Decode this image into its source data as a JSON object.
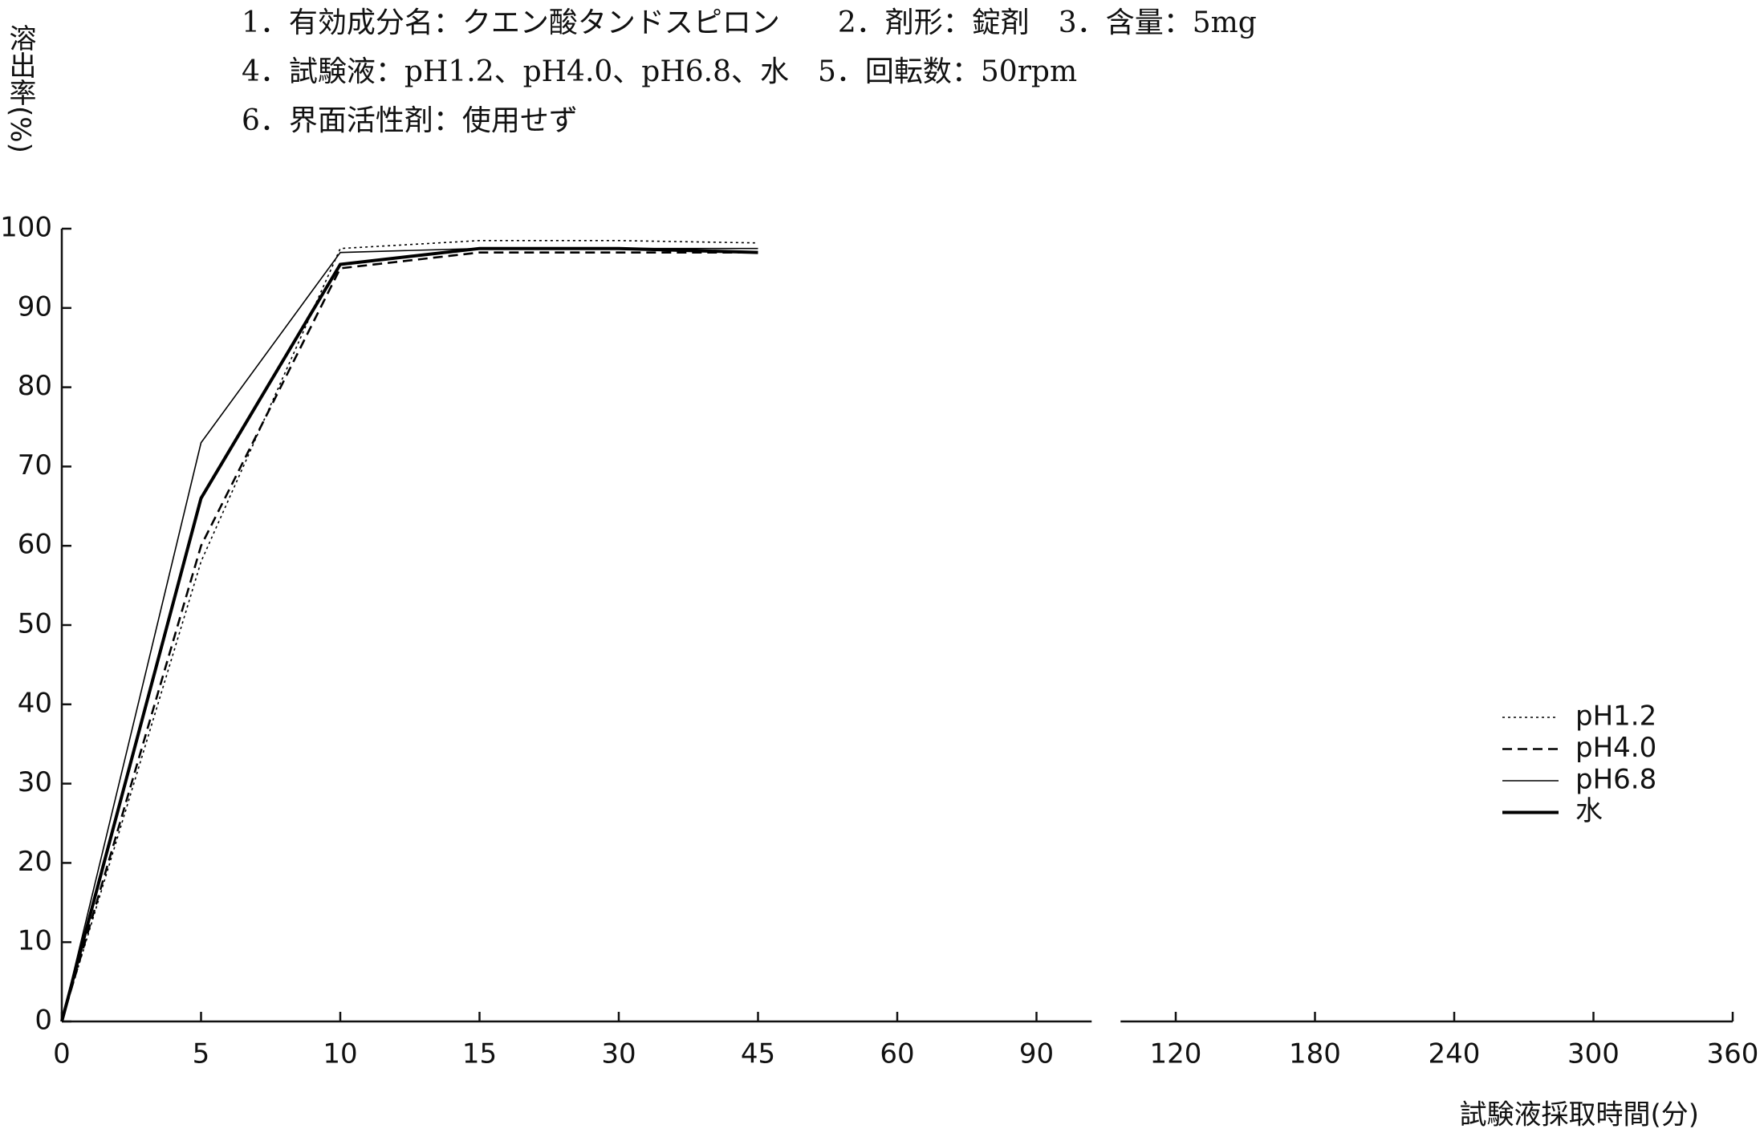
{
  "chart_data": {
    "type": "line",
    "header_lines": [
      "1．有効成分名：クエン酸タンドスピロン　　2．剤形：錠剤　3．含量：5mg",
      "4．試験液：pH1.2、pH4.0、pH6.8、水　5．回転数：50rpm",
      "6．界面活性剤：使用せず"
    ],
    "y_label": "溶出率(%)",
    "x_label": "試験液採取時間(分)",
    "categories": [
      "0",
      "5",
      "10",
      "15",
      "30",
      "45",
      "60",
      "90",
      "120",
      "180",
      "240",
      "300",
      "360"
    ],
    "ylim": [
      0,
      100
    ],
    "yticks": [
      0,
      10,
      20,
      30,
      40,
      50,
      60,
      70,
      80,
      90,
      100
    ],
    "legend": "right",
    "series": [
      {
        "name": "pH1.2",
        "color": "#000000",
        "dash": "dotted",
        "values": [
          0,
          58,
          97.5,
          98.5,
          98.5,
          98.2,
          null,
          null,
          null,
          null,
          null,
          null,
          null
        ]
      },
      {
        "name": "pH4.0",
        "color": "#000000",
        "dash": "dashed",
        "values": [
          0,
          60,
          95,
          97,
          97,
          97,
          null,
          null,
          null,
          null,
          null,
          null,
          null
        ]
      },
      {
        "name": "pH6.8",
        "color": "#000000",
        "dash": "thin",
        "values": [
          0,
          73,
          97,
          97.5,
          97.5,
          97.5,
          null,
          null,
          null,
          null,
          null,
          null,
          null
        ]
      },
      {
        "name": "水",
        "color": "#000000",
        "dash": "thick",
        "values": [
          0,
          66,
          95.5,
          97.5,
          97.5,
          97,
          null,
          null,
          null,
          null,
          null,
          null,
          null
        ]
      }
    ]
  }
}
